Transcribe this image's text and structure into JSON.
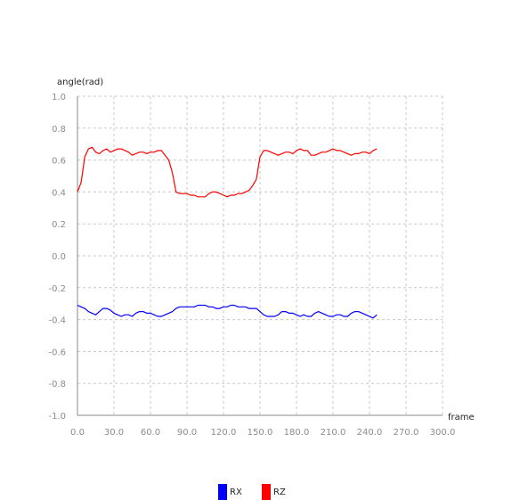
{
  "chart_data": {
    "type": "line",
    "title": "",
    "xlabel": "frame",
    "ylabel": "angle(rad)",
    "xlim": [
      0,
      300
    ],
    "ylim": [
      -1.0,
      1.0
    ],
    "grid": true,
    "legend_position": "bottom-center",
    "x_ticks": [
      "0.0",
      "30.0",
      "60.0",
      "90.0",
      "120.0",
      "150.0",
      "180.0",
      "210.0",
      "240.0",
      "270.0",
      "300.0"
    ],
    "y_ticks": [
      "-1.0",
      "-0.8",
      "-0.6",
      "-0.4",
      "-0.2",
      "0.0",
      "0.2",
      "0.4",
      "0.6",
      "0.8",
      "1.0"
    ],
    "x": [
      0,
      3,
      6,
      9,
      12,
      15,
      18,
      21,
      24,
      27,
      30,
      33,
      36,
      39,
      42,
      45,
      48,
      51,
      54,
      57,
      60,
      63,
      66,
      69,
      72,
      75,
      78,
      81,
      84,
      87,
      90,
      93,
      96,
      99,
      102,
      105,
      108,
      111,
      114,
      117,
      120,
      123,
      126,
      129,
      132,
      135,
      138,
      141,
      144,
      147,
      150,
      153,
      156,
      159,
      162,
      165,
      168,
      171,
      174,
      177,
      180,
      183,
      186,
      189,
      192,
      195,
      198,
      201,
      204,
      207,
      210,
      213,
      216,
      219,
      222,
      225,
      228,
      231,
      234,
      237,
      240,
      243,
      246
    ],
    "series": [
      {
        "name": "RX",
        "color": "#0000ff",
        "values": [
          -0.31,
          -0.32,
          -0.33,
          -0.35,
          -0.36,
          -0.37,
          -0.35,
          -0.33,
          -0.33,
          -0.34,
          -0.36,
          -0.37,
          -0.38,
          -0.37,
          -0.37,
          -0.38,
          -0.36,
          -0.35,
          -0.35,
          -0.36,
          -0.36,
          -0.37,
          -0.38,
          -0.38,
          -0.37,
          -0.36,
          -0.35,
          -0.33,
          -0.32,
          -0.32,
          -0.32,
          -0.32,
          -0.32,
          -0.31,
          -0.31,
          -0.31,
          -0.32,
          -0.32,
          -0.33,
          -0.33,
          -0.32,
          -0.32,
          -0.31,
          -0.31,
          -0.32,
          -0.32,
          -0.32,
          -0.33,
          -0.33,
          -0.33,
          -0.35,
          -0.37,
          -0.38,
          -0.38,
          -0.38,
          -0.37,
          -0.35,
          -0.35,
          -0.36,
          -0.36,
          -0.37,
          -0.38,
          -0.37,
          -0.38,
          -0.38,
          -0.36,
          -0.35,
          -0.36,
          -0.37,
          -0.38,
          -0.38,
          -0.37,
          -0.37,
          -0.38,
          -0.38,
          -0.36,
          -0.35,
          -0.35,
          -0.36,
          -0.37,
          -0.38,
          -0.39,
          -0.37
        ]
      },
      {
        "name": "RZ",
        "color": "#ff0000",
        "values": [
          0.4,
          0.46,
          0.62,
          0.67,
          0.68,
          0.65,
          0.64,
          0.66,
          0.67,
          0.65,
          0.66,
          0.67,
          0.67,
          0.66,
          0.65,
          0.63,
          0.64,
          0.65,
          0.65,
          0.64,
          0.65,
          0.65,
          0.66,
          0.66,
          0.63,
          0.6,
          0.52,
          0.4,
          0.39,
          0.39,
          0.39,
          0.38,
          0.38,
          0.37,
          0.37,
          0.37,
          0.39,
          0.4,
          0.4,
          0.39,
          0.38,
          0.37,
          0.38,
          0.38,
          0.39,
          0.39,
          0.4,
          0.41,
          0.44,
          0.48,
          0.62,
          0.66,
          0.66,
          0.65,
          0.64,
          0.63,
          0.64,
          0.65,
          0.65,
          0.64,
          0.66,
          0.67,
          0.66,
          0.66,
          0.63,
          0.63,
          0.64,
          0.65,
          0.65,
          0.66,
          0.67,
          0.66,
          0.66,
          0.65,
          0.64,
          0.63,
          0.64,
          0.64,
          0.65,
          0.65,
          0.64,
          0.66,
          0.67
        ]
      }
    ]
  }
}
